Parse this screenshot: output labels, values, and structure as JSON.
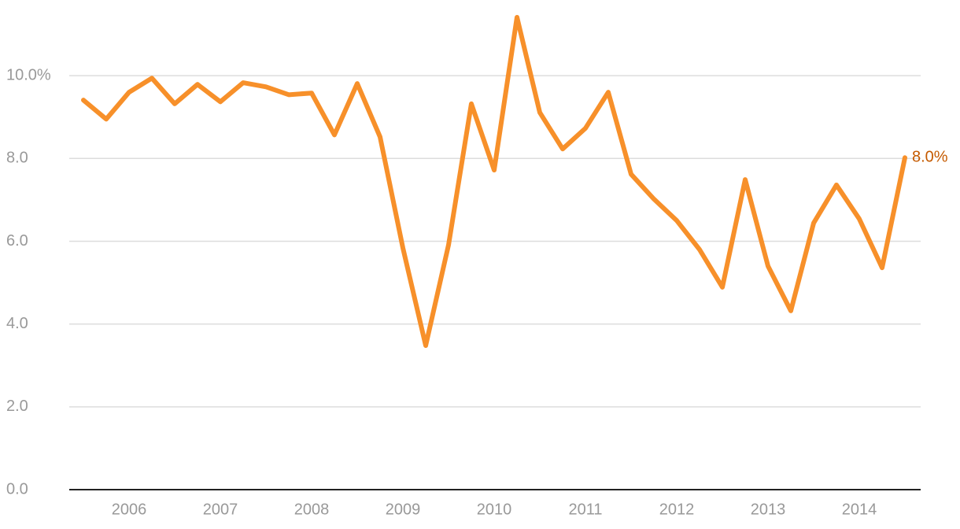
{
  "chart_data": {
    "type": "line",
    "categories": [
      null,
      null,
      "2006",
      null,
      null,
      null,
      "2007",
      null,
      null,
      null,
      "2008",
      null,
      null,
      null,
      "2009",
      null,
      null,
      null,
      "2010",
      null,
      null,
      null,
      "2011",
      null,
      null,
      null,
      "2012",
      null,
      null,
      null,
      "2013",
      null,
      null,
      null,
      "2014",
      null,
      null
    ],
    "series": [
      {
        "color": "#f7902a",
        "values": [
          9.41,
          8.95,
          9.6,
          9.94,
          9.32,
          9.79,
          9.37,
          9.83,
          9.73,
          9.54,
          9.58,
          8.57,
          9.81,
          8.52,
          5.84,
          3.48,
          5.91,
          9.32,
          7.72,
          11.41,
          9.11,
          8.23,
          8.73,
          9.6,
          7.62,
          7.02,
          6.5,
          5.8,
          4.89,
          7.49,
          5.4,
          4.32,
          6.44,
          7.36,
          6.54,
          5.36,
          8.02
        ],
        "value_labels": [
          null,
          null,
          null,
          null,
          null,
          null,
          null,
          null,
          null,
          null,
          null,
          null,
          null,
          null,
          null,
          null,
          null,
          null,
          null,
          null,
          null,
          null,
          null,
          null,
          null,
          null,
          null,
          null,
          null,
          null,
          null,
          null,
          null,
          null,
          null,
          null,
          "8.0%"
        ]
      }
    ],
    "ylim": [
      0,
      11.6
    ],
    "yticks": [
      {
        "value": 0,
        "label": "0.0"
      },
      {
        "value": 2,
        "label": "2.0"
      },
      {
        "value": 4,
        "label": "4.0"
      },
      {
        "value": 6,
        "label": "6.0"
      },
      {
        "value": 8,
        "label": "8.0"
      },
      {
        "value": 10,
        "label": "10.0%"
      }
    ],
    "grid": true
  }
}
